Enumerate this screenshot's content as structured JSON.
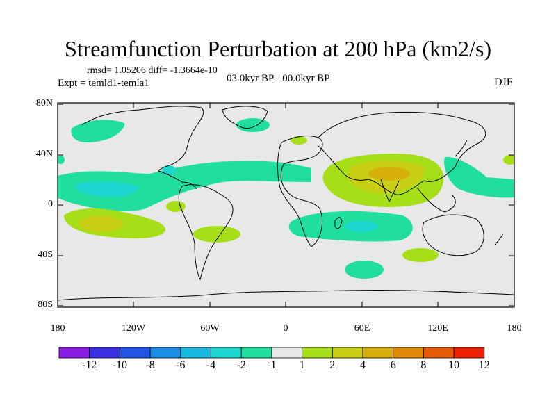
{
  "title": "Streamfunction Perturbation at 200 hPa (km2/s)",
  "stats": "rmsd= 1.05206 diff= -1.3664e-10",
  "experiment": "Expt = temld1-temla1",
  "period": "03.0kyr BP - 00.0kyr BP",
  "season": "DJF",
  "lat_labels": [
    "80N",
    "40N",
    "0",
    "40S",
    "80S"
  ],
  "lon_labels": [
    "180",
    "120W",
    "60W",
    "0",
    "60E",
    "120E",
    "180"
  ],
  "colorbar": {
    "labels": [
      "-12",
      "-10",
      "-8",
      "-6",
      "-4",
      "-2",
      "-1",
      "1",
      "2",
      "4",
      "6",
      "8",
      "10",
      "12"
    ],
    "colors": [
      "#8a1ce6",
      "#3a2fe0",
      "#2255e6",
      "#1a8de6",
      "#18b8e0",
      "#1cd6cf",
      "#20df9e",
      "#e8e8e8",
      "#a6de18",
      "#c8cf14",
      "#d8b00c",
      "#e08a08",
      "#e65a06",
      "#ee2004"
    ]
  }
}
